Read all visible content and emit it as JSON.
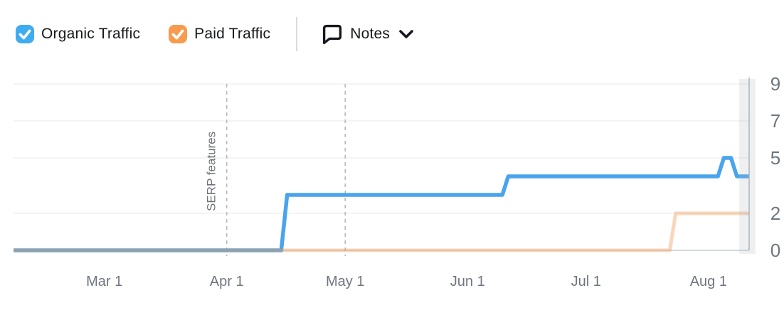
{
  "legend": {
    "items": [
      {
        "label": "Organic Traffic",
        "checked": true,
        "color": "#3FACF0"
      },
      {
        "label": "Paid Traffic",
        "checked": true,
        "color": "#F89B4E"
      }
    ],
    "notes": {
      "label": "Notes"
    }
  },
  "chart_data": {
    "type": "line",
    "title": "",
    "x_axis": {
      "unit": "date",
      "tick_labels": [
        "Mar 1",
        "Apr 1",
        "May 1",
        "Jun 1",
        "Jul 1",
        "Aug 1"
      ],
      "tick_days": [
        23,
        54,
        84,
        115,
        145,
        176
      ],
      "domain_days": [
        0,
        186.3
      ]
    },
    "y_axis": {
      "ticks": [
        0,
        2,
        5,
        7,
        9
      ],
      "domain": [
        0,
        9.19
      ],
      "side": "right",
      "grid": true
    },
    "series": [
      {
        "name": "Organic Traffic",
        "color": "#4AA4EC",
        "opacity": 1,
        "width": 5.5,
        "points": [
          [
            0,
            0
          ],
          [
            67.8,
            0
          ],
          [
            69.3,
            3
          ],
          [
            123.8,
            3
          ],
          [
            125.3,
            4
          ],
          [
            178.4,
            4
          ],
          [
            179.9,
            5
          ],
          [
            181.7,
            5
          ],
          [
            183.2,
            4
          ],
          [
            186.3,
            4
          ]
        ]
      },
      {
        "name": "Paid Traffic",
        "color": "#F09D57",
        "opacity": 0.42,
        "width": 5,
        "points": [
          [
            0,
            0
          ],
          [
            166.2,
            0
          ],
          [
            167.7,
            2
          ],
          [
            186.3,
            2
          ]
        ]
      }
    ],
    "annotations": [
      {
        "type": "vline",
        "day": 54,
        "label": "SERP features"
      },
      {
        "type": "vline",
        "day": 84,
        "label": ""
      }
    ],
    "highlight_band": {
      "from_day": 183.8,
      "to_day": 187.9
    }
  },
  "colors": {
    "grid": "#E8EAEE",
    "axis": "#C6CBD3",
    "plot_border": "#AEB4BC",
    "dashed_note": "#B4BAC2",
    "tick_label": "#6F7580",
    "annotation_label": "#6E7277",
    "band": "rgba(173,181,190,0.22)"
  }
}
